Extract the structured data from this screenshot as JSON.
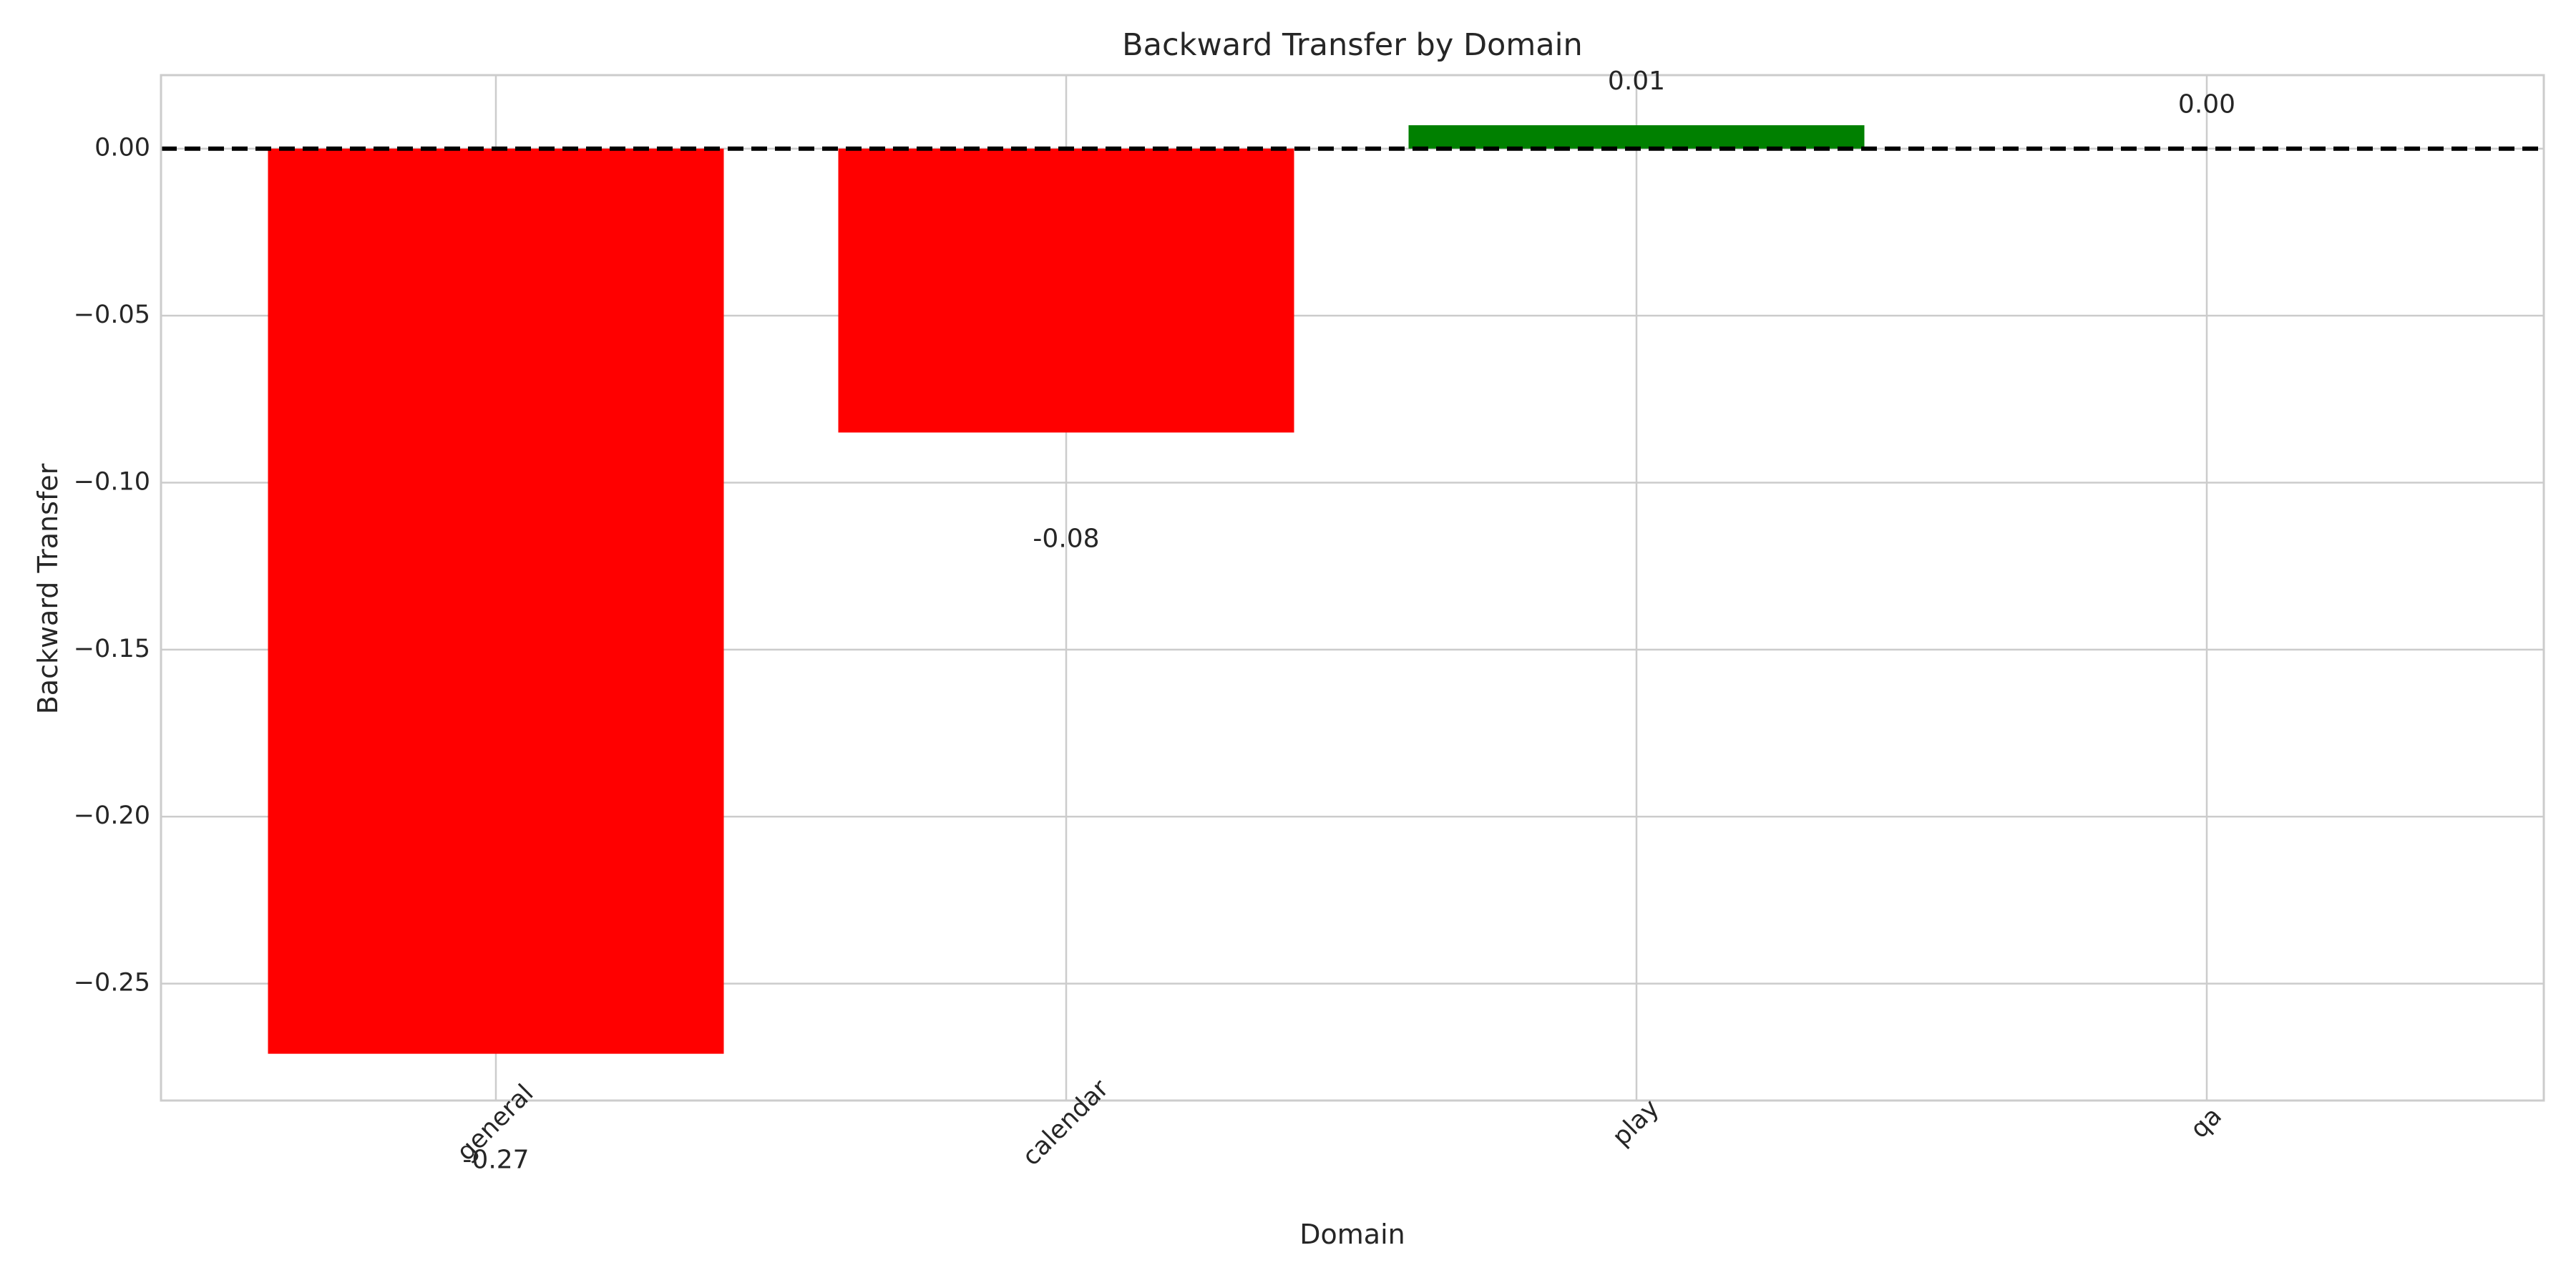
{
  "chart_data": {
    "type": "bar",
    "title": "Backward Transfer by Domain",
    "xlabel": "Domain",
    "ylabel": "Backward Transfer",
    "categories": [
      "general",
      "calendar",
      "play",
      "qa"
    ],
    "values": [
      -0.271,
      -0.085,
      0.007,
      0.0
    ],
    "value_labels": [
      "-0.27",
      "-0.08",
      "0.01",
      "0.00"
    ],
    "bar_colors": [
      "#ff0000",
      "#ff0000",
      "#008000",
      "#008000"
    ],
    "ylim": [
      -0.285,
      0.022
    ],
    "yticks": [
      0.0,
      -0.05,
      -0.1,
      -0.15,
      -0.2,
      -0.25
    ],
    "ytick_labels": [
      "0.00",
      "−0.05",
      "−0.10",
      "−0.15",
      "−0.20",
      "−0.25"
    ],
    "reference_line": {
      "value": 0.0,
      "style": "dashed",
      "color": "#000000"
    },
    "grid": true,
    "xtick_rotation_deg": 45
  }
}
